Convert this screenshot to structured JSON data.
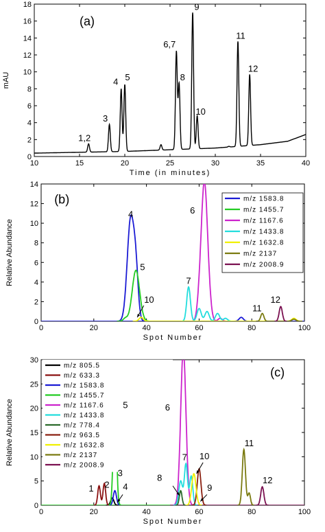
{
  "chart_data": [
    {
      "type": "line",
      "panel_label": "(a)",
      "xlabel": "Time (in minutes)",
      "ylabel": "mAU",
      "xlim": [
        10,
        40
      ],
      "ylim": [
        0,
        18
      ],
      "xticks": [
        10,
        15,
        20,
        25,
        30,
        35,
        40
      ],
      "yticks": [
        0,
        2,
        4,
        6,
        8,
        10,
        12,
        14,
        16,
        18
      ],
      "baseline": [
        [
          10,
          0.4
        ],
        [
          15,
          0.5
        ],
        [
          20,
          0.6
        ],
        [
          25,
          0.8
        ],
        [
          30,
          1.0
        ],
        [
          35,
          1.4
        ],
        [
          38,
          1.8
        ],
        [
          40,
          2.6
        ]
      ],
      "peaks": [
        {
          "label": "1,2",
          "x": 16.0,
          "y": 1.5
        },
        {
          "label": "3",
          "x": 18.3,
          "y": 3.8
        },
        {
          "label": "4",
          "x": 19.6,
          "y": 8.0
        },
        {
          "label": "5",
          "x": 20.0,
          "y": 8.5
        },
        {
          "label": "",
          "x": 24.0,
          "y": 1.4
        },
        {
          "label": "6,7",
          "x": 25.7,
          "y": 12.4
        },
        {
          "label": "8",
          "x": 26.0,
          "y": 8.6
        },
        {
          "label": "9",
          "x": 27.5,
          "y": 17.0
        },
        {
          "label": "10",
          "x": 28.0,
          "y": 4.8
        },
        {
          "label": "",
          "x": 31.5,
          "y": 1.2
        },
        {
          "label": "11",
          "x": 32.5,
          "y": 13.6
        },
        {
          "label": "12",
          "x": 33.8,
          "y": 9.7
        }
      ]
    },
    {
      "type": "line",
      "panel_label": "(b)",
      "xlabel": "Spot Number",
      "ylabel": "Relative Abundance",
      "xlim": [
        0,
        100
      ],
      "ylim": [
        0,
        14
      ],
      "xticks": [
        0,
        20,
        40,
        60,
        80,
        100
      ],
      "yticks": [
        0,
        2,
        4,
        6,
        8,
        10,
        12,
        14
      ],
      "legend_position": "top-right",
      "series": [
        {
          "name": "m/z 1583.8",
          "color": "#1a1ad4",
          "peaks": [
            [
              34,
              10.4,
              1.3
            ],
            [
              36,
              4.2,
              0.9
            ],
            [
              76,
              0.4,
              0.8
            ]
          ]
        },
        {
          "name": "m/z 1455.7",
          "color": "#22cc22",
          "peaks": [
            [
              36,
              5.2,
              1.4
            ],
            [
              32,
              0.3,
              0.8
            ]
          ]
        },
        {
          "name": "m/z 1167.6",
          "color": "#cc22cc",
          "peaks": [
            [
              62,
              14.2,
              1.2
            ],
            [
              60,
              1.2,
              0.8
            ],
            [
              64,
              0.8,
              0.8
            ],
            [
              68,
              0.3,
              0.8
            ]
          ]
        },
        {
          "name": "m/z 1433.8",
          "color": "#22dddd",
          "peaks": [
            [
              56,
              3.5,
              0.7
            ],
            [
              60,
              1.3,
              0.8
            ],
            [
              63,
              1.0,
              0.8
            ],
            [
              67,
              0.8,
              0.8
            ],
            [
              70,
              0.3,
              0.8
            ]
          ]
        },
        {
          "name": "m/z 1632.8",
          "color": "#f0f000",
          "peaks": [
            [
              38,
              0.4,
              0.8
            ],
            [
              96,
              0.3,
              0.8
            ]
          ]
        },
        {
          "name": "m/z 2137",
          "color": "#7a7a10",
          "peaks": [
            [
              84,
              0.8,
              0.6
            ],
            [
              96,
              0.2,
              0.8
            ]
          ]
        },
        {
          "name": "m/z 2008.9",
          "color": "#7a1050",
          "peaks": [
            [
              91,
              1.5,
              0.6
            ]
          ]
        }
      ],
      "annotations": [
        {
          "label": "4",
          "x": 34,
          "y": 10.6
        },
        {
          "label": "5",
          "x": 38.5,
          "y": 5.2
        },
        {
          "label": "6",
          "x": 57.5,
          "y": 11.0
        },
        {
          "label": "7",
          "x": 56,
          "y": 3.8
        },
        {
          "label": "10",
          "x": 41,
          "y": 1.9
        },
        {
          "label": "11",
          "x": 82,
          "y": 1.0
        },
        {
          "label": "12",
          "x": 89,
          "y": 1.9
        }
      ]
    },
    {
      "type": "line",
      "panel_label": "(c)",
      "xlabel": "Spot Number",
      "ylabel": "Relative Abundance",
      "xlim": [
        0,
        100
      ],
      "ylim": [
        0,
        30
      ],
      "xticks": [
        0,
        20,
        40,
        60,
        80,
        100
      ],
      "yticks": [
        0,
        5,
        10,
        15,
        20,
        25,
        30
      ],
      "legend_position": "top-left",
      "series": [
        {
          "name": "m/z 805.5",
          "color": "#000000",
          "peaks": [
            [
              27,
              1.5,
              0.6
            ]
          ]
        },
        {
          "name": "m/z 633.3",
          "color": "#8a1010",
          "peaks": [
            [
              22,
              4.0,
              0.5
            ],
            [
              24,
              4.5,
              0.5
            ]
          ]
        },
        {
          "name": "m/z 1583.8",
          "color": "#1a1ad4",
          "peaks": [
            [
              28,
              3.0,
              0.6
            ]
          ]
        },
        {
          "name": "m/z 1455.7",
          "color": "#22cc22",
          "peaks": [
            [
              28,
              23.0,
              0.6
            ]
          ]
        },
        {
          "name": "m/z 1167.6",
          "color": "#cc22cc",
          "peaks": [
            [
              54,
              32,
              1.0
            ]
          ]
        },
        {
          "name": "m/z 1433.8",
          "color": "#22dddd",
          "peaks": [
            [
              53,
              5.0,
              0.7
            ],
            [
              55,
              8.5,
              0.6
            ],
            [
              57,
              6.0,
              0.6
            ]
          ]
        },
        {
          "name": "m/z 778.4",
          "color": "#2a6a2a",
          "peaks": [
            [
              53,
              3.0,
              0.5
            ]
          ]
        },
        {
          "name": "m/z 963.5",
          "color": "#8a2010",
          "peaks": [
            [
              60,
              7.5,
              0.7
            ]
          ]
        },
        {
          "name": "m/z 1632.8",
          "color": "#f0f000",
          "peaks": [
            [
              58,
              6.5,
              0.8
            ]
          ]
        },
        {
          "name": "m/z 2137",
          "color": "#7a7a10",
          "peaks": [
            [
              77,
              11.5,
              0.6
            ],
            [
              79,
              2.5,
              0.5
            ]
          ]
        },
        {
          "name": "m/z 2008.9",
          "color": "#7a1050",
          "peaks": [
            [
              84,
              3.8,
              0.6
            ]
          ]
        }
      ],
      "annotations": [
        {
          "label": "1",
          "x": 19,
          "y": 2.8
        },
        {
          "label": "2",
          "x": 25,
          "y": 3.6
        },
        {
          "label": "3",
          "x": 30,
          "y": 6.0
        },
        {
          "label": "4",
          "x": 32,
          "y": 3.2
        },
        {
          "label": "5",
          "x": 32,
          "y": 20.0
        },
        {
          "label": "6",
          "x": 48,
          "y": 19.5
        },
        {
          "label": "7",
          "x": 54.5,
          "y": 9.3
        },
        {
          "label": "8",
          "x": 45,
          "y": 5.0
        },
        {
          "label": "9",
          "x": 64,
          "y": 3.0
        },
        {
          "label": "10",
          "x": 62,
          "y": 9.5
        },
        {
          "label": "11",
          "x": 79,
          "y": 12.2
        },
        {
          "label": "12",
          "x": 86,
          "y": 4.5
        }
      ]
    }
  ]
}
